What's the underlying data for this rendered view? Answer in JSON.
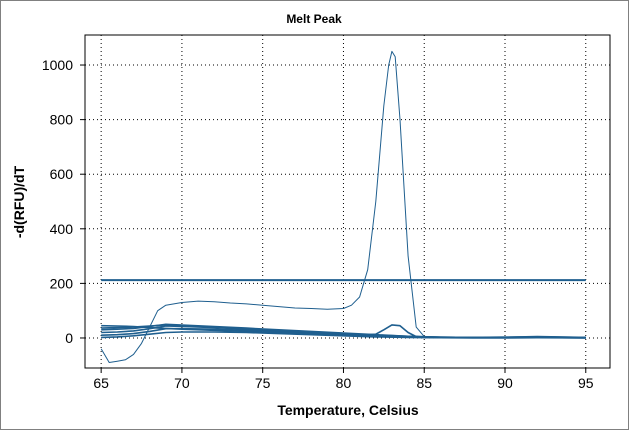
{
  "chart_data": {
    "type": "line",
    "title": "Melt Peak",
    "xlabel": "Temperature, Celsius",
    "ylabel": "-d(RFU)/dT",
    "xlim": [
      64,
      96.5
    ],
    "ylim": [
      -110,
      1110
    ],
    "xticks": [
      65,
      70,
      75,
      80,
      85,
      90,
      95
    ],
    "yticks": [
      0,
      200,
      400,
      600,
      800,
      1000
    ],
    "grid": true,
    "line_color": "#1f5f8f",
    "threshold": {
      "y": 212,
      "x_start": 65,
      "x_end": 95
    },
    "series": [
      {
        "x": [
          65,
          65.5,
          66,
          66.5,
          67,
          67.5,
          68,
          68.5,
          69,
          70,
          71,
          72,
          73,
          74,
          75,
          76,
          77,
          78,
          79,
          80,
          80.5,
          81,
          81.5,
          82,
          82.5,
          82.8,
          83,
          83.2,
          83.5,
          84,
          84.5,
          85,
          86,
          88,
          90,
          92,
          95
        ],
        "y": [
          -40,
          -90,
          -85,
          -80,
          -60,
          -20,
          40,
          100,
          120,
          130,
          135,
          133,
          128,
          125,
          120,
          115,
          110,
          108,
          105,
          108,
          120,
          150,
          250,
          500,
          850,
          1000,
          1050,
          1030,
          800,
          300,
          40,
          5,
          0,
          0,
          0,
          0,
          0
        ]
      },
      {
        "x": [
          65,
          66,
          67,
          68,
          69,
          70,
          72,
          74,
          76,
          78,
          80,
          81,
          82,
          82.5,
          83,
          83.5,
          84,
          84.5,
          85,
          87,
          90,
          92,
          95
        ],
        "y": [
          45,
          44,
          42,
          38,
          35,
          32,
          28,
          24,
          20,
          16,
          12,
          10,
          14,
          30,
          48,
          45,
          20,
          5,
          2,
          2,
          3,
          4,
          2
        ]
      },
      {
        "x": [
          65,
          66,
          67,
          68,
          69,
          70,
          72,
          74,
          76,
          78,
          80,
          82,
          84,
          86,
          88,
          90,
          92,
          95
        ],
        "y": [
          30,
          32,
          35,
          42,
          50,
          47,
          42,
          36,
          30,
          24,
          18,
          12,
          6,
          3,
          2,
          3,
          5,
          2
        ]
      },
      {
        "x": [
          65,
          66,
          67,
          68,
          69,
          70,
          72,
          74,
          76,
          78,
          80,
          82,
          84,
          86,
          88,
          90,
          92,
          95
        ],
        "y": [
          20,
          22,
          26,
          34,
          44,
          42,
          38,
          32,
          26,
          20,
          14,
          9,
          5,
          3,
          2,
          2,
          4,
          1
        ]
      },
      {
        "x": [
          65,
          66,
          67,
          68,
          69,
          70,
          72,
          74,
          76,
          78,
          80,
          82,
          84,
          86,
          88,
          90,
          92,
          95
        ],
        "y": [
          10,
          12,
          16,
          24,
          34,
          34,
          32,
          28,
          22,
          16,
          10,
          6,
          3,
          2,
          1,
          1,
          2,
          0
        ]
      },
      {
        "x": [
          65,
          66,
          67,
          68,
          69,
          70,
          72,
          74,
          76,
          78,
          80,
          82,
          84,
          86,
          88,
          90,
          92,
          95
        ],
        "y": [
          2,
          4,
          8,
          14,
          20,
          22,
          22,
          20,
          16,
          12,
          8,
          4,
          2,
          1,
          0,
          0,
          1,
          0
        ]
      },
      {
        "x": [
          65,
          66,
          67,
          68,
          69,
          70,
          72,
          74,
          76,
          78,
          80,
          82,
          84,
          86,
          88,
          90,
          92,
          95
        ],
        "y": [
          36,
          38,
          40,
          44,
          48,
          46,
          40,
          34,
          28,
          22,
          16,
          11,
          6,
          3,
          2,
          2,
          3,
          1
        ]
      }
    ]
  }
}
